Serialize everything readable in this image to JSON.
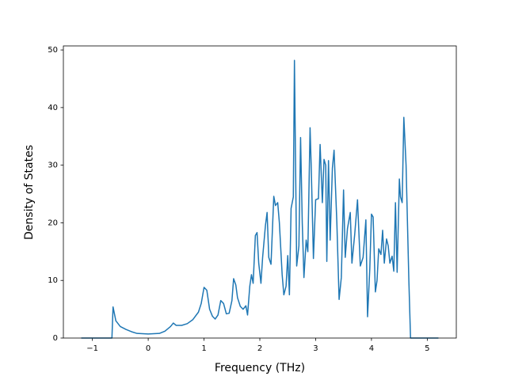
{
  "chart_data": {
    "type": "line",
    "xlabel": "Frequency (THz)",
    "ylabel": "Density of States",
    "color": "#1f77b4",
    "x": [
      -1.2,
      -0.65,
      -0.63,
      -0.58,
      -0.5,
      -0.4,
      -0.3,
      -0.2,
      0,
      0.2,
      0.3,
      0.4,
      0.45,
      0.5,
      0.6,
      0.7,
      0.8,
      0.9,
      0.95,
      1.0,
      1.05,
      1.1,
      1.15,
      1.2,
      1.25,
      1.3,
      1.35,
      1.4,
      1.45,
      1.5,
      1.53,
      1.57,
      1.6,
      1.65,
      1.7,
      1.75,
      1.78,
      1.82,
      1.85,
      1.88,
      1.92,
      1.95,
      1.98,
      2.02,
      2.05,
      2.1,
      2.13,
      2.16,
      2.2,
      2.25,
      2.28,
      2.32,
      2.35,
      2.4,
      2.43,
      2.47,
      2.5,
      2.53,
      2.56,
      2.6,
      2.62,
      2.66,
      2.7,
      2.73,
      2.76,
      2.79,
      2.83,
      2.86,
      2.9,
      2.92,
      2.96,
      3.0,
      3.05,
      3.08,
      3.12,
      3.15,
      3.18,
      3.2,
      3.23,
      3.26,
      3.3,
      3.33,
      3.38,
      3.42,
      3.46,
      3.5,
      3.53,
      3.57,
      3.62,
      3.65,
      3.7,
      3.75,
      3.8,
      3.85,
      3.9,
      3.93,
      3.97,
      4.0,
      4.03,
      4.07,
      4.1,
      4.13,
      4.17,
      4.2,
      4.23,
      4.27,
      4.3,
      4.33,
      4.37,
      4.4,
      4.43,
      4.46,
      4.5,
      4.52,
      4.55,
      4.58,
      4.62,
      4.67,
      4.7,
      5.2
    ],
    "values": [
      0,
      0,
      5.4,
      3,
      2,
      1.5,
      1.1,
      0.8,
      0.7,
      0.8,
      1.2,
      2,
      2.6,
      2.2,
      2.2,
      2.5,
      3.2,
      4.5,
      6,
      8.8,
      8.3,
      5,
      3.8,
      3.3,
      4,
      6.5,
      6,
      4.2,
      4.3,
      6.5,
      10.3,
      9.2,
      7,
      5.5,
      5,
      5.6,
      4,
      9,
      11,
      9.5,
      17.8,
      18.3,
      13,
      9.5,
      14,
      19.5,
      21.8,
      14,
      12.8,
      24.6,
      23,
      23.5,
      20,
      11,
      7.5,
      9,
      14.3,
      7.5,
      22.5,
      24.5,
      48.2,
      12.5,
      16,
      34.8,
      20,
      10.5,
      17,
      15,
      36.5,
      30,
      13.8,
      24,
      24.2,
      33.6,
      23.5,
      31,
      30,
      13.3,
      30.8,
      17,
      29.5,
      32.6,
      20,
      6.7,
      10.5,
      25.7,
      14,
      19,
      21.8,
      13,
      18,
      24,
      12.5,
      14,
      20.5,
      3.7,
      12,
      21.5,
      21,
      8,
      10,
      15.5,
      14.5,
      18.7,
      13,
      17.2,
      16,
      13,
      14.2,
      11.6,
      23.5,
      11.4,
      27.6,
      24.5,
      23.5,
      38.3,
      30,
      10,
      0,
      0
    ],
    "xlim": [
      -1.52,
      5.52
    ],
    "ylim": [
      0,
      50.7
    ],
    "xticks": [
      {
        "value": -1,
        "label": "−1"
      },
      0,
      1,
      2,
      3,
      4,
      5
    ],
    "yticks": [
      0,
      10,
      20,
      30,
      40,
      50
    ]
  }
}
